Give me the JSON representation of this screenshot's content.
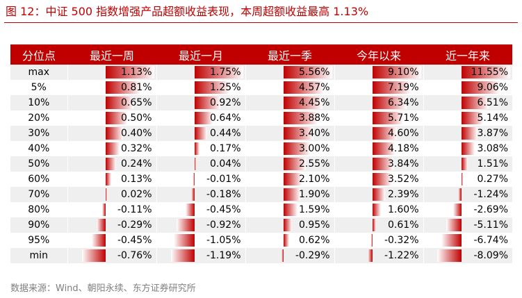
{
  "title": "图 12：中证 500 指数增强产品超额收益表现，本周超额收益最高 1.13%",
  "source": "数据来源：Wind、朝阳永续、东方证券研究所",
  "colors": {
    "accent": "#c00000",
    "stripe": "#efefef"
  },
  "table": {
    "columns": [
      "分位点",
      "最近一周",
      "最近一月",
      "最近一季",
      "今年以来",
      "近一年来"
    ],
    "rows": [
      {
        "pct": "max",
        "values": [
          1.13,
          1.75,
          5.56,
          9.1,
          11.55
        ],
        "labels": [
          "1.13%",
          "1.75%",
          "5.56%",
          "9.10%",
          "11.55%"
        ]
      },
      {
        "pct": "5%",
        "values": [
          0.81,
          1.25,
          4.57,
          7.19,
          9.06
        ],
        "labels": [
          "0.81%",
          "1.25%",
          "4.57%",
          "7.19%",
          "9.06%"
        ]
      },
      {
        "pct": "10%",
        "values": [
          0.65,
          0.92,
          4.45,
          6.34,
          6.51
        ],
        "labels": [
          "0.65%",
          "0.92%",
          "4.45%",
          "6.34%",
          "6.51%"
        ]
      },
      {
        "pct": "20%",
        "values": [
          0.5,
          0.64,
          3.88,
          5.71,
          5.14
        ],
        "labels": [
          "0.50%",
          "0.64%",
          "3.88%",
          "5.71%",
          "5.14%"
        ]
      },
      {
        "pct": "30%",
        "values": [
          0.4,
          0.44,
          3.4,
          4.6,
          3.87
        ],
        "labels": [
          "0.40%",
          "0.44%",
          "3.40%",
          "4.60%",
          "3.87%"
        ]
      },
      {
        "pct": "40%",
        "values": [
          0.32,
          0.17,
          3.0,
          4.18,
          3.08
        ],
        "labels": [
          "0.32%",
          "0.17%",
          "3.00%",
          "4.18%",
          "3.08%"
        ]
      },
      {
        "pct": "50%",
        "values": [
          0.24,
          0.04,
          2.55,
          3.84,
          1.51
        ],
        "labels": [
          "0.24%",
          "0.04%",
          "2.55%",
          "3.84%",
          "1.51%"
        ]
      },
      {
        "pct": "60%",
        "values": [
          0.13,
          -0.01,
          2.1,
          3.52,
          0.27
        ],
        "labels": [
          "0.13%",
          "-0.01%",
          "2.10%",
          "3.52%",
          "0.27%"
        ]
      },
      {
        "pct": "70%",
        "values": [
          0.02,
          -0.18,
          1.9,
          2.39,
          -1.24
        ],
        "labels": [
          "0.02%",
          "-0.18%",
          "1.90%",
          "2.39%",
          "-1.24%"
        ]
      },
      {
        "pct": "80%",
        "values": [
          -0.11,
          -0.45,
          1.59,
          1.6,
          -2.69
        ],
        "labels": [
          "-0.11%",
          "-0.45%",
          "1.59%",
          "1.60%",
          "-2.69%"
        ]
      },
      {
        "pct": "90%",
        "values": [
          -0.29,
          -0.92,
          0.95,
          0.61,
          -5.11
        ],
        "labels": [
          "-0.29%",
          "-0.92%",
          "0.95%",
          "0.61%",
          "-5.11%"
        ]
      },
      {
        "pct": "95%",
        "values": [
          -0.45,
          -1.05,
          0.62,
          -0.32,
          -6.74
        ],
        "labels": [
          "-0.45%",
          "-1.05%",
          "0.62%",
          "-0.32%",
          "-6.74%"
        ]
      },
      {
        "pct": "min",
        "values": [
          -0.76,
          -1.19,
          -0.29,
          -1.22,
          -8.09
        ],
        "labels": [
          "-0.76%",
          "-1.19%",
          "-0.29%",
          "-1.22%",
          "-8.09%"
        ]
      }
    ]
  }
}
